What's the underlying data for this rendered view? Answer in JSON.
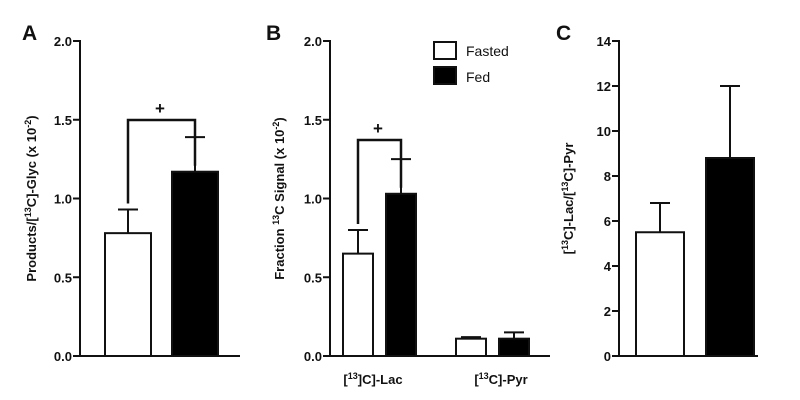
{
  "legend": [
    {
      "label": "Fasted",
      "color": "#ffffff"
    },
    {
      "label": "Fed",
      "color": "#000000"
    }
  ],
  "chart_data": [
    {
      "panel": "A",
      "type": "bar",
      "ylabel_parts": [
        "Products/[",
        "13",
        "C]-Glyc (x 10",
        "-2",
        ")"
      ],
      "ylim": [
        0,
        2.0
      ],
      "yticks": [
        "0.0",
        "0.5",
        "1.0",
        "1.5",
        "2.0"
      ],
      "categories": [
        ""
      ],
      "series": [
        {
          "name": "Fasted",
          "values": [
            0.78
          ],
          "errors": [
            0.15
          ]
        },
        {
          "name": "Fed",
          "values": [
            1.17
          ],
          "errors": [
            0.22
          ]
        }
      ],
      "significance": "+"
    },
    {
      "panel": "B",
      "type": "bar",
      "ylabel_parts": [
        "Fraction ",
        "13",
        "C Signal (x 10",
        "-2",
        ")"
      ],
      "ylim": [
        0,
        2.0
      ],
      "yticks": [
        "0.0",
        "0.5",
        "1.0",
        "1.5",
        "2.0"
      ],
      "categories": [
        {
          "parts": [
            "[",
            "13",
            "]C]-Lac"
          ]
        },
        {
          "parts": [
            "[",
            "13",
            "C]-Pyr"
          ]
        }
      ],
      "series": [
        {
          "name": "Fasted",
          "values": [
            0.65,
            0.11
          ],
          "errors": [
            0.15,
            0.01
          ]
        },
        {
          "name": "Fed",
          "values": [
            1.03,
            0.11
          ],
          "errors": [
            0.22,
            0.04
          ]
        }
      ],
      "significance": "+"
    },
    {
      "panel": "C",
      "type": "bar",
      "ylabel_parts": [
        "[",
        "13",
        "C]-Lac/[",
        "13",
        "C]-Pyr"
      ],
      "ylim": [
        0,
        14
      ],
      "yticks": [
        "0",
        "2",
        "4",
        "6",
        "8",
        "10",
        "12",
        "14"
      ],
      "categories": [
        ""
      ],
      "series": [
        {
          "name": "Fasted",
          "values": [
            5.5
          ],
          "errors": [
            1.3
          ]
        },
        {
          "name": "Fed",
          "values": [
            8.8
          ],
          "errors": [
            3.2
          ]
        }
      ],
      "significance": ""
    }
  ]
}
